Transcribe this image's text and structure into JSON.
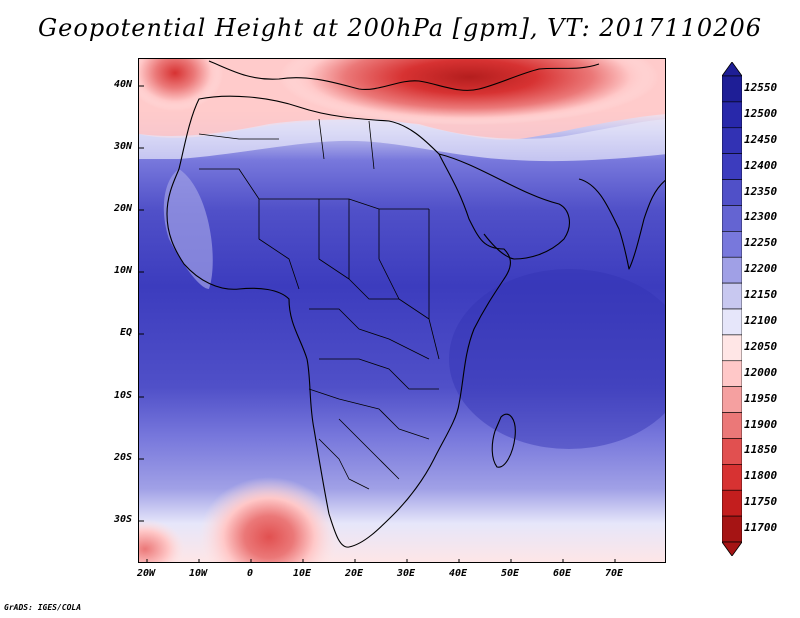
{
  "title": "Geopotential Height at 200hPa [gpm], VT: 2017110206",
  "credit": "GrADS: IGES/COLA",
  "lat_labels": [
    "40N",
    "30N",
    "20N",
    "10N",
    "EQ",
    "10S",
    "20S",
    "30S"
  ],
  "lon_labels": [
    "20W",
    "10W",
    "0",
    "10E",
    "20E",
    "30E",
    "40E",
    "50E",
    "60E",
    "70E"
  ],
  "colorbar": {
    "levels": [
      "12550",
      "12500",
      "12450",
      "12400",
      "12350",
      "12300",
      "12250",
      "12200",
      "12150",
      "12100",
      "12050",
      "12000",
      "11950",
      "11900",
      "11850",
      "11800",
      "11750",
      "11700"
    ],
    "colors": [
      "#1e1e96",
      "#2828aa",
      "#3232b4",
      "#3c3cbe",
      "#5050c8",
      "#6464d2",
      "#7878dc",
      "#a0a0e6",
      "#c8c8f0",
      "#e6e6fa",
      "#ffe6e6",
      "#ffc8c8",
      "#f5a0a0",
      "#eb7878",
      "#e15050",
      "#d73232",
      "#c31e1e",
      "#a51414"
    ]
  }
}
